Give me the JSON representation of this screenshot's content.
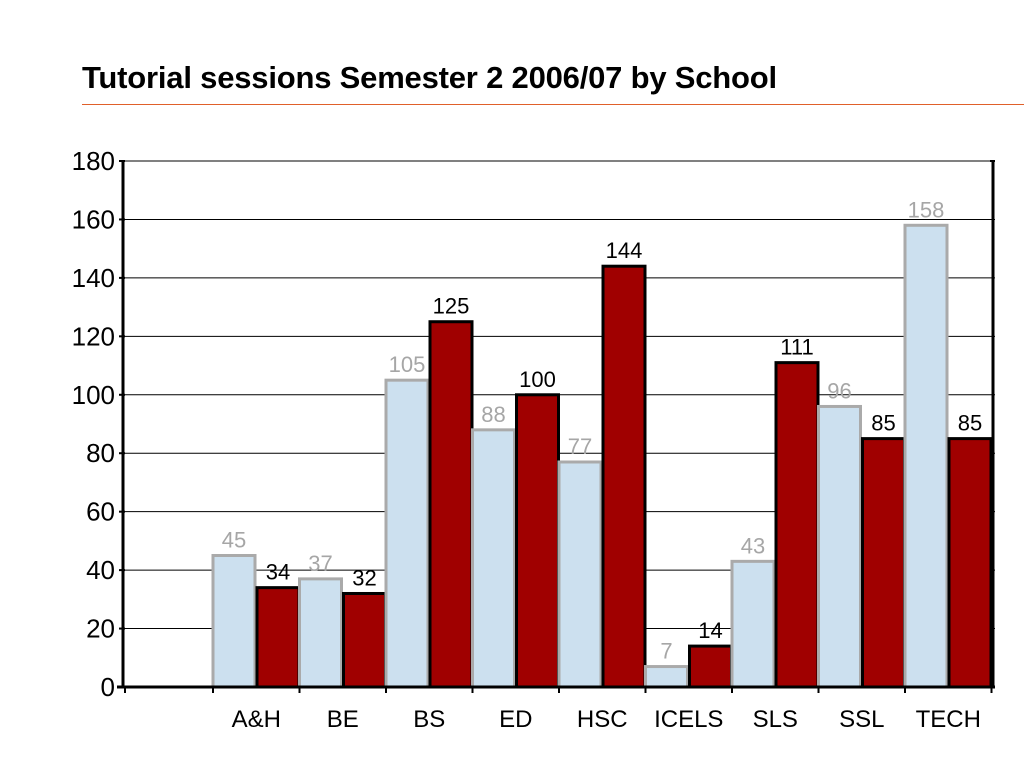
{
  "title": "Tutorial sessions Semester 2 2006/07 by School",
  "colors": {
    "accent_rule": "#e0602a",
    "series_a_fill": "#cce0ef",
    "series_a_stroke": "#aaaaaa",
    "series_a_label": "#a6a6a6",
    "series_b_fill": "#a00000",
    "series_b_stroke": "#000000",
    "series_b_label": "#000000"
  },
  "chart_data": {
    "type": "bar",
    "title": "Tutorial sessions Semester 2 2006/07 by School",
    "xlabel": "",
    "ylabel": "",
    "ylim": [
      0,
      180
    ],
    "yticks": [
      "0",
      "20",
      "40",
      "60",
      "80",
      "100",
      "120",
      "140",
      "160",
      "180"
    ],
    "grid": true,
    "legend": "none",
    "categories": [
      "A&H",
      "BE",
      "BS",
      "ED",
      "HSC",
      "ICELS",
      "SLS",
      "SSL",
      "TECH"
    ],
    "series": [
      {
        "values": [
          45,
          37,
          105,
          88,
          77,
          7,
          43,
          96,
          158
        ]
      },
      {
        "values": [
          34,
          32,
          125,
          100,
          144,
          14,
          111,
          85,
          85
        ]
      }
    ]
  }
}
